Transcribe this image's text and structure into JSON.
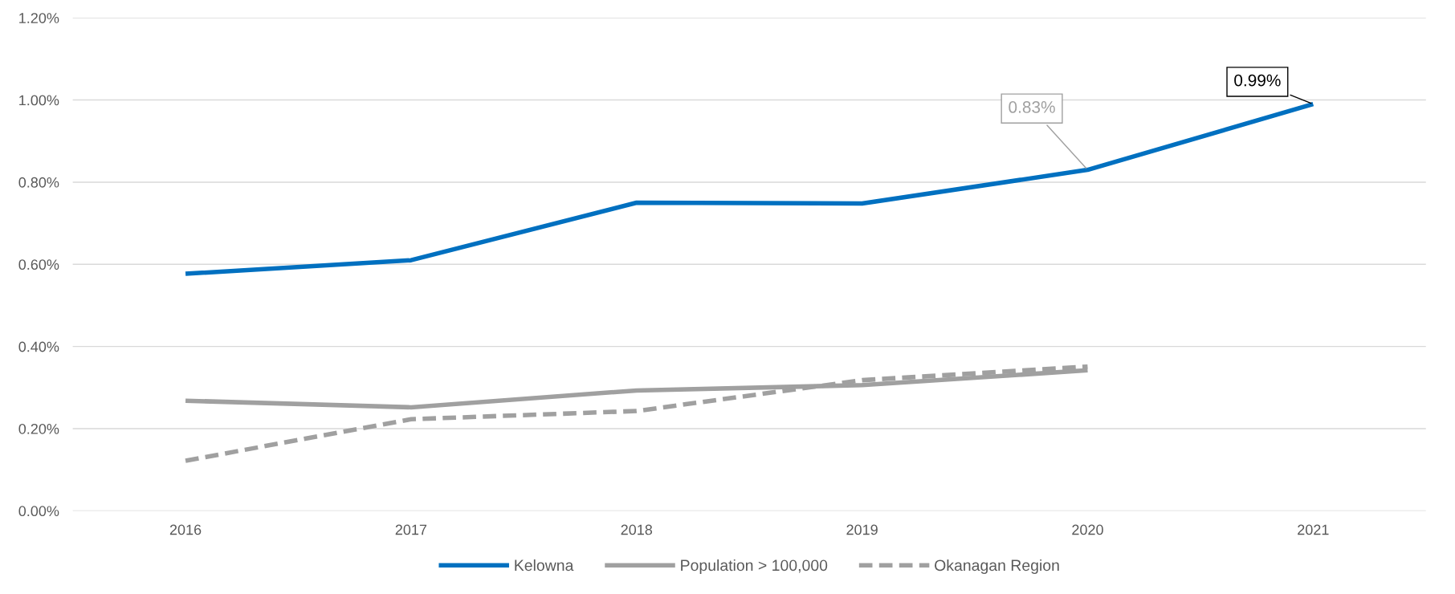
{
  "chart_data": {
    "type": "line",
    "categories": [
      "2016",
      "2017",
      "2018",
      "2019",
      "2020",
      "2021"
    ],
    "series": [
      {
        "name": "Kelowna",
        "color": "#0070c0",
        "values": [
          0.577,
          0.61,
          0.75,
          0.748,
          0.83,
          0.99
        ],
        "value_labels": [
          null,
          null,
          null,
          null,
          "0.83%",
          "0.99%"
        ]
      },
      {
        "name": "Population > 100,000",
        "color": "#a0a0a0",
        "values": [
          0.268,
          0.252,
          0.293,
          0.306,
          0.342,
          null
        ]
      },
      {
        "name": "Okanagan Region",
        "color": "#a0a0a0",
        "line_style": "dashed",
        "values": [
          0.122,
          0.223,
          0.243,
          0.318,
          0.351,
          null
        ]
      }
    ],
    "ylim": [
      0,
      1.2
    ],
    "yticks": [
      {
        "value": 0,
        "label": "0.00%"
      },
      {
        "value": 0.2,
        "label": "0.20%"
      },
      {
        "value": 0.4,
        "label": "0.40%"
      },
      {
        "value": 0.6,
        "label": "0.60%"
      },
      {
        "value": 0.8,
        "label": "0.80%"
      },
      {
        "value": 1.0,
        "label": "1.00%"
      },
      {
        "value": 1.2,
        "label": "1.20%"
      }
    ],
    "grid": "y",
    "legend": "bottom",
    "marker": "none",
    "line_style": "solid"
  }
}
